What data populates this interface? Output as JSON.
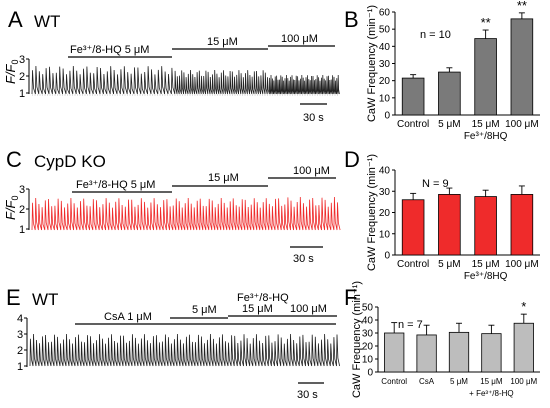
{
  "panels": {
    "A": {
      "letter": "A",
      "label": "WT",
      "yticks": [
        "3",
        "2",
        "1"
      ],
      "ylabel_F": "F/F",
      "ylabel_sub": "0",
      "sections": [
        {
          "text": "Fe³⁺/8-HQ 5 μM"
        },
        {
          "text": "15 μM"
        },
        {
          "text": "100 μM"
        }
      ],
      "scalebar": "30 s"
    },
    "C": {
      "letter": "C",
      "label": "CypD KO",
      "yticks": [
        "3",
        "2",
        "1"
      ],
      "ylabel_F": "F/F",
      "ylabel_sub": "0",
      "sections": [
        {
          "text": "Fe³⁺/8-HQ 5 μM"
        },
        {
          "text": "15 μM"
        },
        {
          "text": "100 μM"
        }
      ],
      "scalebar": "30 s"
    },
    "E": {
      "letter": "E",
      "label": "WT",
      "yticks": [
        "4",
        "3",
        "2",
        "1"
      ],
      "sections": [
        {
          "text": "CsA 1 μM"
        },
        {
          "text": "5 μM"
        },
        {
          "text": "15 μM"
        },
        {
          "text": "100 μM"
        }
      ],
      "header": "Fe³⁺/8-HQ",
      "scalebar": "30 s"
    }
  },
  "chart_data": [
    {
      "type": "bar",
      "panel": "B",
      "n_label": "n = 10",
      "ylabel": "CaW Frequency (min⁻¹)",
      "yticks": [
        0,
        10,
        20,
        30,
        40,
        50,
        60
      ],
      "ylim": [
        0,
        60
      ],
      "categories": [
        "Control",
        "5 μM",
        "15 μM",
        "100 μM"
      ],
      "xgroup_label": "Fe³⁺/8HQ",
      "values": [
        21.5,
        25,
        44.5,
        56
      ],
      "errors": [
        2,
        2.5,
        5,
        3.5
      ],
      "significance": [
        "",
        "",
        "**",
        "**"
      ],
      "colors": [
        "#7a7a7a",
        "#7a7a7a",
        "#7a7a7a",
        "#7a7a7a"
      ]
    },
    {
      "type": "bar",
      "panel": "D",
      "n_label": "N = 9",
      "ylabel": "CaW Frequency (min⁻¹)",
      "yticks": [
        0,
        10,
        20,
        30,
        40
      ],
      "ylim": [
        0,
        40
      ],
      "categories": [
        "Control",
        "5 μM",
        "15 μM",
        "100 μM"
      ],
      "xgroup_label": "Fe³⁺/8HQ",
      "values": [
        26,
        28.5,
        27.5,
        28.5
      ],
      "errors": [
        3,
        3,
        3,
        4
      ],
      "significance": [
        "",
        "",
        "",
        ""
      ],
      "colors": [
        "#ef2b2b",
        "#ef2b2b",
        "#ef2b2b",
        "#ef2b2b"
      ]
    },
    {
      "type": "bar",
      "panel": "F",
      "n_label": "n = 7",
      "ylabel": "CaW Frequency (min⁻¹)",
      "yticks": [
        0,
        10,
        20,
        30,
        40,
        50
      ],
      "ylim": [
        0,
        50
      ],
      "categories": [
        "Control",
        "CsA",
        "5 μM",
        "15 μM",
        "100 μM"
      ],
      "xgroup_label": "+ Fe³⁺/8-HQ",
      "values": [
        30,
        28.5,
        30.5,
        29.5,
        37.5
      ],
      "errors": [
        8,
        7.5,
        7,
        6.5,
        7
      ],
      "significance": [
        "",
        "",
        "",
        "",
        "*"
      ],
      "colors": [
        "#bdbdbd",
        "#bdbdbd",
        "#bdbdbd",
        "#bdbdbd",
        "#bdbdbd"
      ]
    }
  ]
}
